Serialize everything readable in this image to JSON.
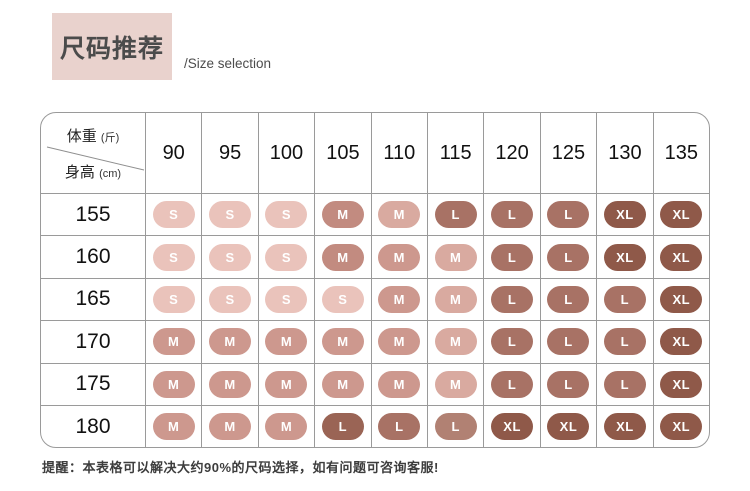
{
  "header": {
    "title": "尺码推荐",
    "subtitle": "/Size selection"
  },
  "table": {
    "corner": {
      "top_label": "体重",
      "top_unit": "(斤)",
      "bottom_label": "身高",
      "bottom_unit": "(cm)"
    },
    "weight_columns": [
      "90",
      "95",
      "100",
      "105",
      "110",
      "115",
      "120",
      "125",
      "130",
      "135"
    ],
    "rows": [
      {
        "height": "155",
        "cells": [
          {
            "size": "S",
            "tone": "S"
          },
          {
            "size": "S",
            "tone": "S"
          },
          {
            "size": "S",
            "tone": "S"
          },
          {
            "size": "M",
            "tone": "M0"
          },
          {
            "size": "M",
            "tone": "M2"
          },
          {
            "size": "L",
            "tone": "L"
          },
          {
            "size": "L",
            "tone": "L"
          },
          {
            "size": "L",
            "tone": "L"
          },
          {
            "size": "XL",
            "tone": "XL"
          },
          {
            "size": "XL",
            "tone": "XL"
          }
        ]
      },
      {
        "height": "160",
        "cells": [
          {
            "size": "S",
            "tone": "S"
          },
          {
            "size": "S",
            "tone": "S"
          },
          {
            "size": "S",
            "tone": "S"
          },
          {
            "size": "M",
            "tone": "M0"
          },
          {
            "size": "M",
            "tone": "M"
          },
          {
            "size": "M",
            "tone": "M2"
          },
          {
            "size": "L",
            "tone": "L"
          },
          {
            "size": "L",
            "tone": "L"
          },
          {
            "size": "XL",
            "tone": "XL"
          },
          {
            "size": "XL",
            "tone": "XL"
          }
        ]
      },
      {
        "height": "165",
        "cells": [
          {
            "size": "S",
            "tone": "S"
          },
          {
            "size": "S",
            "tone": "S"
          },
          {
            "size": "S",
            "tone": "S"
          },
          {
            "size": "S",
            "tone": "S"
          },
          {
            "size": "M",
            "tone": "M"
          },
          {
            "size": "M",
            "tone": "M2"
          },
          {
            "size": "L",
            "tone": "L"
          },
          {
            "size": "L",
            "tone": "L"
          },
          {
            "size": "L",
            "tone": "L"
          },
          {
            "size": "XL",
            "tone": "XL"
          }
        ]
      },
      {
        "height": "170",
        "cells": [
          {
            "size": "M",
            "tone": "M"
          },
          {
            "size": "M",
            "tone": "M"
          },
          {
            "size": "M",
            "tone": "M"
          },
          {
            "size": "M",
            "tone": "M"
          },
          {
            "size": "M",
            "tone": "M"
          },
          {
            "size": "M",
            "tone": "M2"
          },
          {
            "size": "L",
            "tone": "L"
          },
          {
            "size": "L",
            "tone": "L"
          },
          {
            "size": "L",
            "tone": "L"
          },
          {
            "size": "XL",
            "tone": "XL"
          }
        ]
      },
      {
        "height": "175",
        "cells": [
          {
            "size": "M",
            "tone": "M"
          },
          {
            "size": "M",
            "tone": "M"
          },
          {
            "size": "M",
            "tone": "M"
          },
          {
            "size": "M",
            "tone": "M"
          },
          {
            "size": "M",
            "tone": "M"
          },
          {
            "size": "M",
            "tone": "M2"
          },
          {
            "size": "L",
            "tone": "L"
          },
          {
            "size": "L",
            "tone": "L"
          },
          {
            "size": "L",
            "tone": "L"
          },
          {
            "size": "XL",
            "tone": "XL"
          }
        ]
      },
      {
        "height": "180",
        "cells": [
          {
            "size": "M",
            "tone": "M"
          },
          {
            "size": "M",
            "tone": "M"
          },
          {
            "size": "M",
            "tone": "M"
          },
          {
            "size": "L",
            "tone": "L0"
          },
          {
            "size": "L",
            "tone": "L"
          },
          {
            "size": "L",
            "tone": "L2"
          },
          {
            "size": "XL",
            "tone": "XL"
          },
          {
            "size": "XL",
            "tone": "XL"
          },
          {
            "size": "XL",
            "tone": "XL"
          },
          {
            "size": "XL",
            "tone": "XL"
          }
        ]
      }
    ]
  },
  "note": "提醒：本表格可以解决大约90%的尺码选择，如有问题可咨询客服!",
  "palette": {
    "S": "#eac3bb",
    "M0": "#c28b80",
    "M": "#cd988e",
    "M2": "#d9aaa0",
    "L0": "#9a6455",
    "L": "#a87265",
    "L2": "#b18173",
    "XL": "#8f5949"
  },
  "colors": {
    "title_bg": "#e9d2cd",
    "grid_line": "#9a9a9a",
    "badge_text": "#ffffff"
  },
  "chart_data": {
    "type": "table",
    "title": "尺码推荐 /Size selection",
    "column_axis_label": "体重 (斤)",
    "row_axis_label": "身高 (cm)",
    "columns": [
      90,
      95,
      100,
      105,
      110,
      115,
      120,
      125,
      130,
      135
    ],
    "rows": [
      155,
      160,
      165,
      170,
      175,
      180
    ],
    "values": [
      [
        "S",
        "S",
        "S",
        "M",
        "M",
        "L",
        "L",
        "L",
        "XL",
        "XL"
      ],
      [
        "S",
        "S",
        "S",
        "M",
        "M",
        "M",
        "L",
        "L",
        "XL",
        "XL"
      ],
      [
        "S",
        "S",
        "S",
        "S",
        "M",
        "M",
        "L",
        "L",
        "L",
        "XL"
      ],
      [
        "M",
        "M",
        "M",
        "M",
        "M",
        "M",
        "L",
        "L",
        "L",
        "XL"
      ],
      [
        "M",
        "M",
        "M",
        "M",
        "M",
        "M",
        "L",
        "L",
        "L",
        "XL"
      ],
      [
        "M",
        "M",
        "M",
        "L",
        "L",
        "L",
        "XL",
        "XL",
        "XL",
        "XL"
      ]
    ],
    "note": "提醒：本表格可以解决大约90%的尺码选择，如有问题可咨询客服!"
  }
}
